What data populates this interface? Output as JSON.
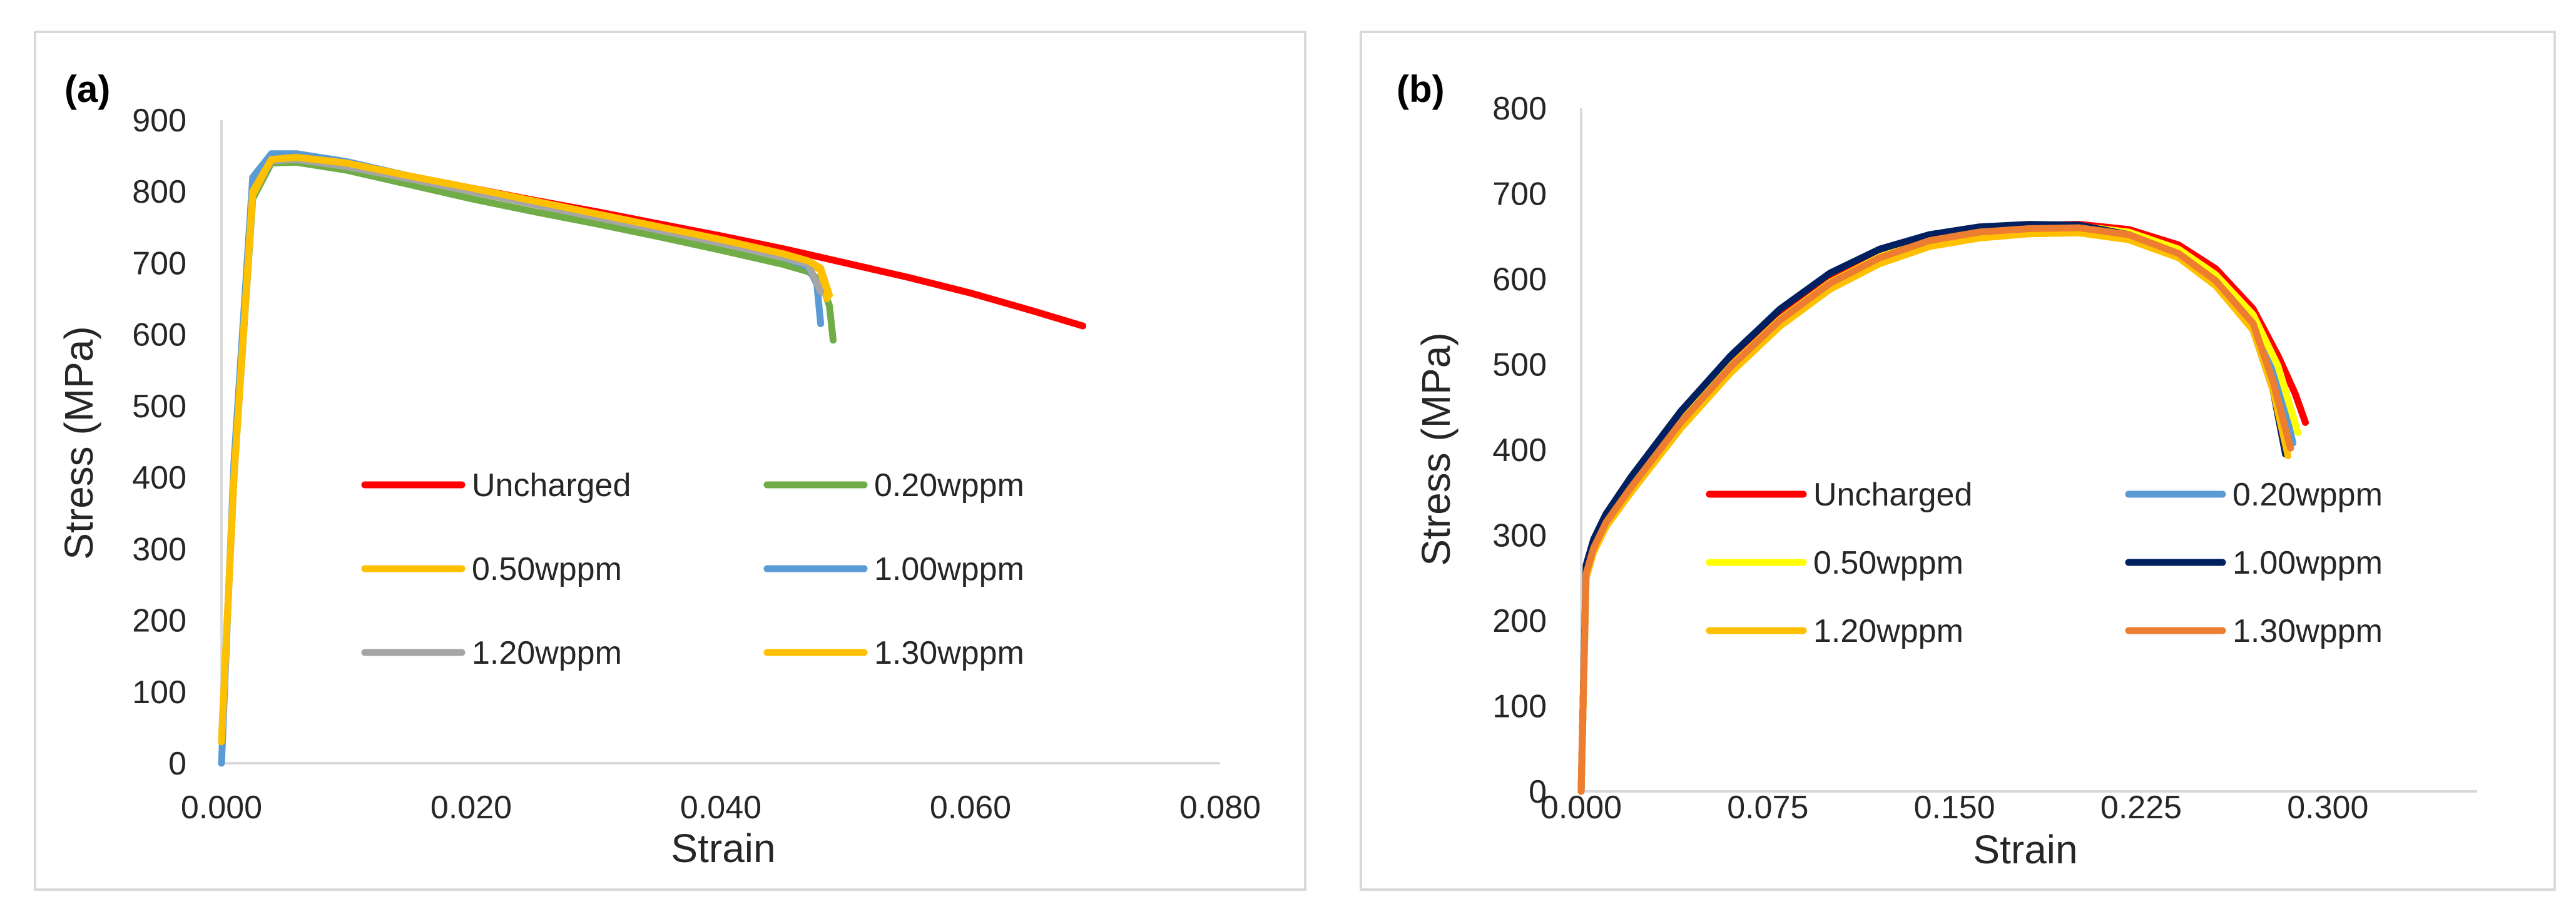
{
  "chart_data": [
    {
      "type": "line",
      "panel_label": "(a)",
      "xlabel": "Strain",
      "ylabel": "Stress (MPa)",
      "xlim": [
        0,
        0.08
      ],
      "ylim": [
        0,
        900
      ],
      "x_ticks": [
        0,
        0.02,
        0.04,
        0.06,
        0.08
      ],
      "x_tick_labels": [
        "0.000",
        "0.020",
        "0.040",
        "0.060",
        "0.080"
      ],
      "y_ticks": [
        0,
        100,
        200,
        300,
        400,
        500,
        600,
        700,
        800,
        900
      ],
      "y_tick_labels": [
        "0",
        "100",
        "200",
        "300",
        "400",
        "500",
        "600",
        "700",
        "800",
        "900"
      ],
      "series": [
        {
          "name": "Uncharged",
          "color": "#ff0000",
          "x": [
            0,
            0.001,
            0.0025,
            0.004,
            0.006,
            0.01,
            0.015,
            0.02,
            0.025,
            0.03,
            0.035,
            0.04,
            0.045,
            0.05,
            0.055,
            0.06,
            0.065,
            0.069
          ],
          "y": [
            30,
            400,
            800,
            845,
            848,
            838,
            822,
            805,
            788,
            772,
            755,
            738,
            720,
            700,
            680,
            658,
            633,
            612
          ]
        },
        {
          "name": "0.20wppm",
          "color": "#70ad47",
          "x": [
            0,
            0.001,
            0.0025,
            0.004,
            0.006,
            0.01,
            0.015,
            0.02,
            0.025,
            0.03,
            0.035,
            0.04,
            0.045,
            0.047,
            0.048,
            0.0487,
            0.049
          ],
          "y": [
            30,
            400,
            790,
            840,
            841,
            830,
            810,
            790,
            772,
            755,
            737,
            718,
            698,
            688,
            675,
            640,
            592
          ]
        },
        {
          "name": "0.50wppm",
          "color": "#ffc000",
          "x": [
            0,
            0.001,
            0.0025,
            0.004,
            0.006,
            0.01,
            0.015,
            0.02,
            0.025,
            0.03,
            0.035,
            0.04,
            0.045,
            0.047,
            0.048,
            0.0485
          ],
          "y": [
            30,
            400,
            795,
            845,
            848,
            838,
            820,
            802,
            784,
            766,
            748,
            730,
            710,
            700,
            690,
            650
          ]
        },
        {
          "name": "1.00wppm",
          "color": "#5b9bd5",
          "x": [
            0,
            0.001,
            0.0025,
            0.004,
            0.006,
            0.01,
            0.015,
            0.02,
            0.025,
            0.03,
            0.035,
            0.04,
            0.045,
            0.047,
            0.0477,
            0.048
          ],
          "y": [
            0,
            420,
            820,
            853,
            853,
            842,
            822,
            802,
            783,
            765,
            747,
            728,
            708,
            695,
            670,
            615
          ]
        },
        {
          "name": "1.20wppm",
          "color": "#a5a5a5",
          "x": [
            0,
            0.001,
            0.0025,
            0.004,
            0.006,
            0.01,
            0.015,
            0.02,
            0.025,
            0.03,
            0.035,
            0.04,
            0.045,
            0.047,
            0.048
          ],
          "y": [
            30,
            400,
            800,
            843,
            845,
            835,
            818,
            800,
            782,
            764,
            746,
            728,
            708,
            698,
            660
          ]
        },
        {
          "name": "1.30wppm",
          "color": "#ffc000",
          "x": [
            0,
            0.001,
            0.0025,
            0.004,
            0.006,
            0.01,
            0.015,
            0.02,
            0.025,
            0.03,
            0.035,
            0.04,
            0.045,
            0.047,
            0.048,
            0.0487
          ],
          "y": [
            30,
            400,
            800,
            845,
            848,
            840,
            822,
            805,
            787,
            769,
            751,
            733,
            713,
            703,
            693,
            655
          ]
        }
      ]
    },
    {
      "type": "line",
      "panel_label": "(b)",
      "xlabel": "Strain",
      "ylabel": "Stress (MPa)",
      "xlim": [
        0,
        0.36
      ],
      "ylim": [
        0,
        800
      ],
      "x_ticks": [
        0,
        0.075,
        0.15,
        0.225,
        0.3
      ],
      "x_tick_labels": [
        "0.000",
        "0.075",
        "0.150",
        "0.225",
        "0.300"
      ],
      "y_ticks": [
        0,
        100,
        200,
        300,
        400,
        500,
        600,
        700,
        800
      ],
      "y_tick_labels": [
        "0",
        "100",
        "200",
        "300",
        "400",
        "500",
        "600",
        "700",
        "800"
      ],
      "series": [
        {
          "name": "Uncharged",
          "color": "#ff0000",
          "x": [
            0,
            0.002,
            0.005,
            0.01,
            0.02,
            0.04,
            0.06,
            0.08,
            0.1,
            0.12,
            0.14,
            0.16,
            0.18,
            0.2,
            0.22,
            0.24,
            0.255,
            0.27,
            0.28,
            0.287,
            0.291
          ],
          "y": [
            0,
            260,
            290,
            320,
            360,
            435,
            500,
            555,
            598,
            628,
            648,
            658,
            663,
            664,
            658,
            640,
            612,
            565,
            510,
            465,
            432
          ]
        },
        {
          "name": "0.20wppm",
          "color": "#5b9bd5",
          "x": [
            0,
            0.002,
            0.005,
            0.01,
            0.02,
            0.04,
            0.06,
            0.08,
            0.1,
            0.12,
            0.14,
            0.16,
            0.18,
            0.2,
            0.22,
            0.24,
            0.255,
            0.27,
            0.28,
            0.286
          ],
          "y": [
            0,
            255,
            285,
            315,
            355,
            430,
            495,
            550,
            593,
            623,
            643,
            653,
            658,
            659,
            650,
            628,
            597,
            548,
            482,
            408
          ]
        },
        {
          "name": "0.50wppm",
          "color": "#ffff00",
          "x": [
            0,
            0.002,
            0.005,
            0.01,
            0.02,
            0.04,
            0.06,
            0.08,
            0.1,
            0.12,
            0.14,
            0.16,
            0.18,
            0.2,
            0.22,
            0.24,
            0.255,
            0.27,
            0.28,
            0.288
          ],
          "y": [
            0,
            258,
            288,
            318,
            358,
            433,
            498,
            553,
            596,
            626,
            646,
            656,
            661,
            662,
            655,
            635,
            605,
            558,
            498,
            420
          ]
        },
        {
          "name": "1.00wppm",
          "color": "#002060",
          "x": [
            0,
            0.002,
            0.005,
            0.01,
            0.02,
            0.04,
            0.06,
            0.08,
            0.1,
            0.12,
            0.14,
            0.16,
            0.18,
            0.2,
            0.22,
            0.24,
            0.255,
            0.27,
            0.278,
            0.283
          ],
          "y": [
            0,
            265,
            295,
            325,
            368,
            445,
            510,
            565,
            607,
            635,
            652,
            661,
            664,
            663,
            652,
            628,
            595,
            540,
            470,
            395
          ]
        },
        {
          "name": "1.20wppm",
          "color": "#ffc000",
          "x": [
            0,
            0.002,
            0.005,
            0.01,
            0.02,
            0.04,
            0.06,
            0.08,
            0.1,
            0.12,
            0.14,
            0.16,
            0.18,
            0.2,
            0.22,
            0.24,
            0.255,
            0.27,
            0.278,
            0.284
          ],
          "y": [
            0,
            250,
            280,
            310,
            350,
            425,
            490,
            545,
            588,
            618,
            638,
            648,
            653,
            654,
            646,
            625,
            592,
            540,
            470,
            393
          ]
        },
        {
          "name": "1.30wppm",
          "color": "#ed7d31",
          "x": [
            0,
            0.002,
            0.005,
            0.01,
            0.02,
            0.04,
            0.06,
            0.08,
            0.1,
            0.12,
            0.14,
            0.16,
            0.18,
            0.2,
            0.22,
            0.24,
            0.255,
            0.27,
            0.278,
            0.285
          ],
          "y": [
            0,
            255,
            285,
            315,
            356,
            432,
            497,
            552,
            595,
            625,
            645,
            655,
            659,
            660,
            652,
            630,
            598,
            548,
            480,
            402
          ]
        }
      ]
    }
  ]
}
